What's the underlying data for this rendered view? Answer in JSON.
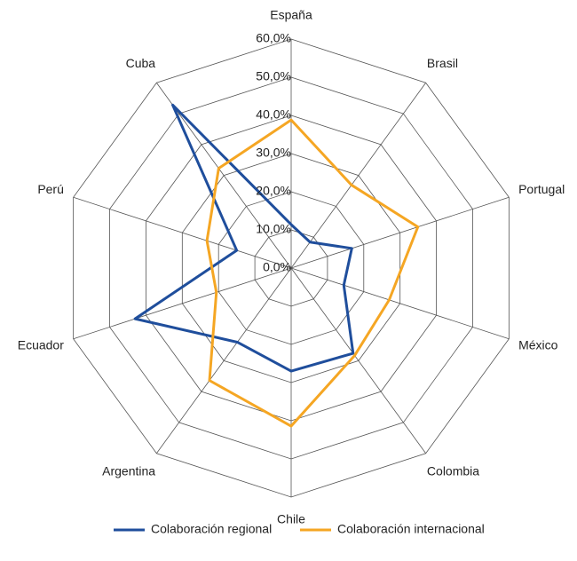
{
  "chart_data": {
    "type": "radar",
    "categories": [
      "España",
      "Brasil",
      "Portugal",
      "México",
      "Colombia",
      "Chile",
      "Argentina",
      "Ecuador",
      "Perú",
      "Cuba"
    ],
    "series": [
      {
        "name": "Colaboración regional",
        "color": "#1f4e9c",
        "values": [
          11.4,
          8.4,
          16.7,
          14.5,
          27.6,
          27,
          24,
          43,
          15,
          52.8
        ]
      },
      {
        "name": "Colaboración internacional",
        "color": "#f5a623",
        "values": [
          38.8,
          26.9,
          34.9,
          27,
          28.3,
          41.4,
          36.4,
          20.6,
          23.2,
          32.3
        ]
      }
    ],
    "ylim": [
      0,
      60
    ],
    "yticks": [
      {
        "value": 0,
        "label": "0,0%"
      },
      {
        "value": 10,
        "label": "10,0%"
      },
      {
        "value": 20,
        "label": "20,0%"
      },
      {
        "value": 30,
        "label": "30,0%"
      },
      {
        "value": 40,
        "label": "40,0%"
      },
      {
        "value": 50,
        "label": "50,0%"
      },
      {
        "value": 60,
        "label": "60,0%"
      }
    ],
    "grid": true,
    "legend": "bottom"
  }
}
